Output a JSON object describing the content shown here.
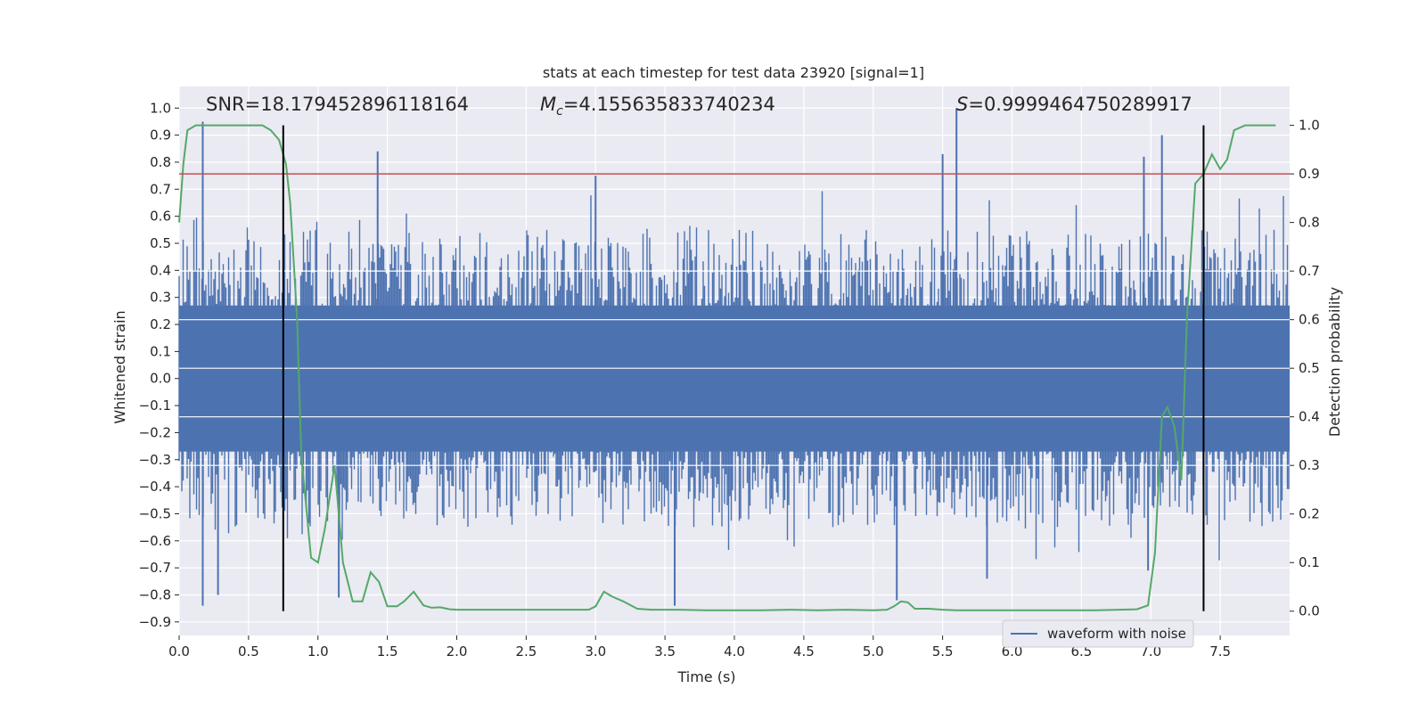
{
  "chart_data": {
    "type": "line",
    "title": "stats at each timestep for test data 23920 [signal=1]",
    "xlabel": "Time (s)",
    "ylabel": "Whitened strain",
    "ylabel_right": "Detection probability",
    "xlim": [
      0.0,
      8.0
    ],
    "ylim": [
      -0.95,
      1.08
    ],
    "ylim_right": [
      -0.05,
      1.08
    ],
    "x_ticks": [
      "0.0",
      "0.5",
      "1.0",
      "1.5",
      "2.0",
      "2.5",
      "3.0",
      "3.5",
      "4.0",
      "4.5",
      "5.0",
      "5.5",
      "6.0",
      "6.5",
      "7.0",
      "7.5"
    ],
    "y_ticks": [
      "1.0",
      "0.9",
      "0.8",
      "0.7",
      "0.6",
      "0.5",
      "0.4",
      "0.3",
      "0.2",
      "0.1",
      "0.0",
      "-0.1",
      "-0.2",
      "-0.3",
      "-0.4",
      "-0.5",
      "-0.6",
      "-0.7",
      "-0.8",
      "-0.9"
    ],
    "y_right_ticks": [
      "1.0",
      "0.9",
      "0.8",
      "0.7",
      "0.6",
      "0.5",
      "0.4",
      "0.3",
      "0.2",
      "0.1",
      "0.0"
    ],
    "annotations": {
      "snr": "SNR=18.179452896118164",
      "mc_symbol": "M",
      "mc_sub": "c",
      "mc_value": "=4.155635833740234",
      "s_symbol": "S",
      "s_value": "=0.9999464750289917"
    },
    "legend": {
      "label": "waveform with noise",
      "position": "lower-right"
    },
    "threshold_right": 0.9,
    "vlines_x": [
      0.75,
      7.38
    ],
    "series": [
      {
        "name": "waveform with noise",
        "axis": "left",
        "color": "#4c72b0",
        "peaks_x": [
          0.17,
          1.43,
          3.0,
          5.5,
          5.6,
          6.95,
          7.08
        ],
        "peaks_y": [
          0.95,
          0.84,
          0.75,
          0.83,
          1.0,
          0.82,
          0.9
        ],
        "troughs_x": [
          0.17,
          0.28,
          1.15,
          3.57,
          5.17,
          5.82,
          6.98
        ],
        "troughs_y": [
          -0.84,
          -0.8,
          -0.81,
          -0.84,
          -0.82,
          -0.74,
          -0.71
        ]
      },
      {
        "name": "",
        "axis": "right",
        "color": "#55a868",
        "x": [
          0.0,
          0.03,
          0.06,
          0.12,
          0.2,
          0.3,
          0.4,
          0.5,
          0.6,
          0.66,
          0.72,
          0.77,
          0.8,
          0.85,
          0.88,
          0.95,
          1.0,
          1.05,
          1.12,
          1.18,
          1.25,
          1.32,
          1.38,
          1.44,
          1.5,
          1.57,
          1.62,
          1.69,
          1.76,
          1.82,
          1.88,
          1.95,
          2.0,
          2.2,
          2.5,
          2.8,
          2.95,
          3.0,
          3.06,
          3.12,
          3.2,
          3.3,
          3.4,
          3.5,
          3.6,
          3.8,
          4.0,
          4.2,
          4.4,
          4.6,
          4.8,
          5.0,
          5.1,
          5.15,
          5.2,
          5.25,
          5.3,
          5.4,
          5.5,
          5.6,
          5.8,
          6.0,
          6.3,
          6.6,
          6.9,
          6.98,
          7.03,
          7.08,
          7.12,
          7.17,
          7.22,
          7.26,
          7.32,
          7.38,
          7.44,
          7.5,
          7.55,
          7.6,
          7.68,
          7.75,
          7.9
        ],
        "y": [
          0.8,
          0.92,
          0.99,
          1.0,
          1.0,
          1.0,
          1.0,
          1.0,
          1.0,
          0.99,
          0.97,
          0.92,
          0.84,
          0.6,
          0.32,
          0.11,
          0.1,
          0.17,
          0.3,
          0.1,
          0.02,
          0.02,
          0.08,
          0.06,
          0.01,
          0.01,
          0.02,
          0.04,
          0.012,
          0.007,
          0.008,
          0.004,
          0.003,
          0.003,
          0.003,
          0.003,
          0.003,
          0.01,
          0.04,
          0.03,
          0.02,
          0.005,
          0.003,
          0.003,
          0.003,
          0.002,
          0.002,
          0.002,
          0.003,
          0.002,
          0.003,
          0.002,
          0.003,
          0.01,
          0.02,
          0.018,
          0.005,
          0.005,
          0.003,
          0.002,
          0.002,
          0.002,
          0.002,
          0.002,
          0.004,
          0.012,
          0.12,
          0.4,
          0.42,
          0.38,
          0.27,
          0.6,
          0.88,
          0.9,
          0.94,
          0.91,
          0.93,
          0.99,
          1.0,
          1.0,
          1.0
        ]
      }
    ]
  },
  "colors": {
    "plot_bg": "#eaeaf2",
    "grid": "#ffffff",
    "waveform": "#4c72b0",
    "probability": "#55a868",
    "threshold": "#c44e52",
    "vline": "#000000"
  }
}
